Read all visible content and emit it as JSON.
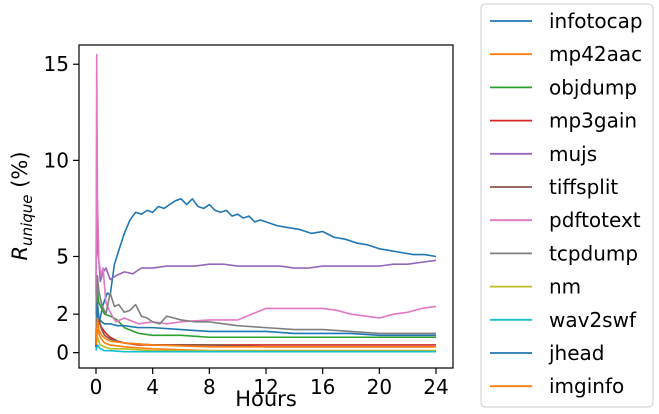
{
  "chart_data": {
    "type": "line",
    "xlabel": "Hours",
    "ylabel": "R_unique (%)",
    "ylabel_main": "R",
    "ylabel_sub": "unique",
    "ylabel_suffix": " (%)",
    "xlim": [
      -1.2,
      25.2
    ],
    "ylim": [
      -0.8,
      16.0
    ],
    "xticks": [
      0,
      4,
      8,
      12,
      16,
      20,
      24
    ],
    "xtick_labels": [
      "0",
      "4",
      "8",
      "12",
      "16",
      "20",
      "24"
    ],
    "yticks": [
      0,
      2,
      5,
      10,
      15
    ],
    "ytick_labels": [
      "0",
      "2",
      "5",
      "10",
      "15"
    ],
    "grid": false,
    "legend_placement": "outside-right",
    "series": [
      {
        "name": "infotocap",
        "color": "#1f77b4",
        "x": [
          0,
          0.05,
          0.15,
          0.3,
          0.5,
          0.8,
          1.0,
          1.3,
          1.6,
          2.0,
          2.4,
          2.8,
          3.2,
          3.6,
          4.0,
          4.4,
          4.8,
          5.2,
          5.6,
          6.0,
          6.4,
          6.8,
          7.2,
          7.6,
          8.0,
          8.4,
          8.8,
          9.2,
          9.6,
          10.0,
          10.4,
          10.8,
          11.2,
          11.6,
          12.0,
          12.8,
          13.6,
          14.4,
          15.2,
          16.0,
          16.8,
          17.6,
          18.4,
          19.2,
          20.0,
          20.8,
          21.6,
          22.4,
          23.2,
          24.0
        ],
        "y": [
          0.3,
          3.0,
          1.6,
          1.8,
          2.5,
          3.1,
          3.0,
          4.6,
          5.3,
          6.2,
          6.9,
          7.3,
          7.2,
          7.4,
          7.3,
          7.6,
          7.5,
          7.7,
          7.9,
          8.0,
          7.7,
          8.0,
          7.6,
          7.5,
          7.7,
          7.4,
          7.3,
          7.4,
          7.1,
          7.2,
          7.0,
          7.1,
          6.8,
          6.9,
          6.8,
          6.6,
          6.5,
          6.4,
          6.2,
          6.3,
          6.0,
          5.9,
          5.7,
          5.6,
          5.4,
          5.3,
          5.2,
          5.1,
          5.1,
          5.0
        ]
      },
      {
        "name": "mp42aac",
        "color": "#ff7f0e",
        "x": [
          0,
          0.1,
          0.3,
          0.6,
          1.0,
          2.0,
          4.0,
          8.0,
          12.0,
          16.0,
          20.0,
          24.0
        ],
        "y": [
          0.5,
          1.2,
          0.8,
          0.5,
          0.4,
          0.3,
          0.2,
          0.1,
          0.1,
          0.1,
          0.1,
          0.1
        ]
      },
      {
        "name": "objdump",
        "color": "#2ca02c",
        "x": [
          0,
          0.1,
          0.2,
          0.4,
          0.6,
          1.0,
          1.5,
          2.0,
          3.0,
          4.0,
          6.0,
          8.0,
          10.0,
          12.0,
          14.0,
          16.0,
          18.0,
          20.0,
          22.0,
          24.0
        ],
        "y": [
          0.4,
          3.2,
          2.6,
          2.3,
          2.0,
          1.9,
          1.7,
          1.3,
          1.0,
          0.9,
          0.9,
          0.8,
          0.8,
          0.8,
          0.8,
          0.8,
          0.8,
          0.8,
          0.8,
          0.8
        ]
      },
      {
        "name": "mp3gain",
        "color": "#d62728",
        "x": [
          0,
          0.1,
          0.2,
          0.4,
          0.7,
          1.0,
          1.5,
          2.0,
          3.0,
          4.0,
          6.0,
          8.0,
          12.0,
          16.0,
          20.0,
          24.0
        ],
        "y": [
          0.3,
          2.2,
          1.6,
          1.3,
          1.0,
          0.8,
          0.6,
          0.5,
          0.4,
          0.4,
          0.4,
          0.4,
          0.4,
          0.4,
          0.4,
          0.4
        ]
      },
      {
        "name": "mujs",
        "color": "#9467bd",
        "x": [
          0,
          0.05,
          0.1,
          0.2,
          0.3,
          0.5,
          0.7,
          1.0,
          1.4,
          2.0,
          2.6,
          3.2,
          4.0,
          5.0,
          6.0,
          7.0,
          8.0,
          9.0,
          10.0,
          11.0,
          12.0,
          13.0,
          14.0,
          15.0,
          16.0,
          17.0,
          18.0,
          19.0,
          20.0,
          21.0,
          22.0,
          23.0,
          24.0
        ],
        "y": [
          3.0,
          10.5,
          5.3,
          4.8,
          3.7,
          4.2,
          4.4,
          3.8,
          4.0,
          4.2,
          4.1,
          4.4,
          4.4,
          4.5,
          4.5,
          4.5,
          4.6,
          4.6,
          4.5,
          4.5,
          4.5,
          4.5,
          4.4,
          4.4,
          4.5,
          4.5,
          4.5,
          4.5,
          4.5,
          4.6,
          4.6,
          4.7,
          4.8
        ]
      },
      {
        "name": "tiffsplit",
        "color": "#8c564b",
        "x": [
          0,
          0.1,
          0.2,
          0.4,
          0.6,
          1.0,
          2.0,
          4.0,
          8.0,
          12.0,
          16.0,
          20.0,
          24.0
        ],
        "y": [
          0.3,
          2.5,
          1.8,
          1.2,
          0.9,
          0.7,
          0.5,
          0.4,
          0.4,
          0.3,
          0.3,
          0.3,
          0.3
        ]
      },
      {
        "name": "pdftotext",
        "color": "#e377c2",
        "x": [
          0,
          0.05,
          0.1,
          0.2,
          0.35,
          0.5,
          0.7,
          1.0,
          1.4,
          2.0,
          3.0,
          4.0,
          5.0,
          6.0,
          8.0,
          10.0,
          11.0,
          12.0,
          14.0,
          16.0,
          17.0,
          18.0,
          19.0,
          20.0,
          21.0,
          22.0,
          23.0,
          24.0
        ],
        "y": [
          2.0,
          15.5,
          8.2,
          4.8,
          4.0,
          4.4,
          2.6,
          2.1,
          1.6,
          1.8,
          1.5,
          1.6,
          1.5,
          1.6,
          1.7,
          1.7,
          2.0,
          2.3,
          2.3,
          2.3,
          2.2,
          2.0,
          1.9,
          1.8,
          2.0,
          2.1,
          2.3,
          2.4
        ]
      },
      {
        "name": "tcpdump",
        "color": "#7f7f7f",
        "x": [
          0,
          0.1,
          0.2,
          0.4,
          0.7,
          1.0,
          1.3,
          1.6,
          2.0,
          2.4,
          2.8,
          3.2,
          3.6,
          4.0,
          4.5,
          5.0,
          6.0,
          7.0,
          8.0,
          9.0,
          10.0,
          12.0,
          14.0,
          16.0,
          18.0,
          20.0,
          22.0,
          24.0
        ],
        "y": [
          0.5,
          4.0,
          3.2,
          2.5,
          2.0,
          3.1,
          2.4,
          2.5,
          2.1,
          2.2,
          2.5,
          1.9,
          1.8,
          1.6,
          1.5,
          1.9,
          1.7,
          1.6,
          1.6,
          1.5,
          1.4,
          1.3,
          1.2,
          1.2,
          1.1,
          1.0,
          1.0,
          1.0
        ]
      },
      {
        "name": "nm",
        "color": "#bcbd22",
        "x": [
          0,
          0.1,
          0.3,
          0.6,
          1.0,
          2.0,
          4.0,
          8.0,
          12.0,
          16.0,
          20.0,
          24.0
        ],
        "y": [
          0.2,
          0.8,
          0.4,
          0.3,
          0.2,
          0.2,
          0.1,
          0.1,
          0.1,
          0.1,
          0.1,
          0.1
        ]
      },
      {
        "name": "wav2swf",
        "color": "#17becf",
        "x": [
          0,
          0.1,
          0.3,
          0.6,
          1.0,
          2.0,
          4.0,
          8.0,
          12.0,
          16.0,
          20.0,
          24.0
        ],
        "y": [
          0.1,
          0.4,
          0.2,
          0.1,
          0.1,
          0.05,
          0.05,
          0.05,
          0.05,
          0.05,
          0.05,
          0.05
        ]
      },
      {
        "name": "jhead",
        "color": "#1f77b4",
        "x": [
          0,
          0.1,
          0.2,
          0.4,
          0.6,
          1.0,
          1.5,
          2.0,
          3.0,
          4.0,
          6.0,
          8.0,
          10.0,
          12.0,
          14.0,
          16.0,
          18.0,
          20.0,
          22.0,
          24.0
        ],
        "y": [
          0.3,
          2.6,
          1.8,
          1.6,
          1.5,
          1.5,
          1.4,
          1.4,
          1.3,
          1.3,
          1.2,
          1.1,
          1.1,
          1.1,
          1.0,
          1.0,
          1.0,
          0.9,
          0.9,
          0.9
        ]
      },
      {
        "name": "imginfo",
        "color": "#ff7f0e",
        "x": [
          0,
          0.1,
          0.2,
          0.4,
          0.7,
          1.0,
          2.0,
          4.0,
          8.0,
          12.0,
          16.0,
          20.0,
          24.0
        ],
        "y": [
          0.4,
          1.8,
          1.2,
          0.9,
          0.7,
          0.6,
          0.5,
          0.4,
          0.3,
          0.3,
          0.3,
          0.3,
          0.3
        ]
      }
    ]
  }
}
